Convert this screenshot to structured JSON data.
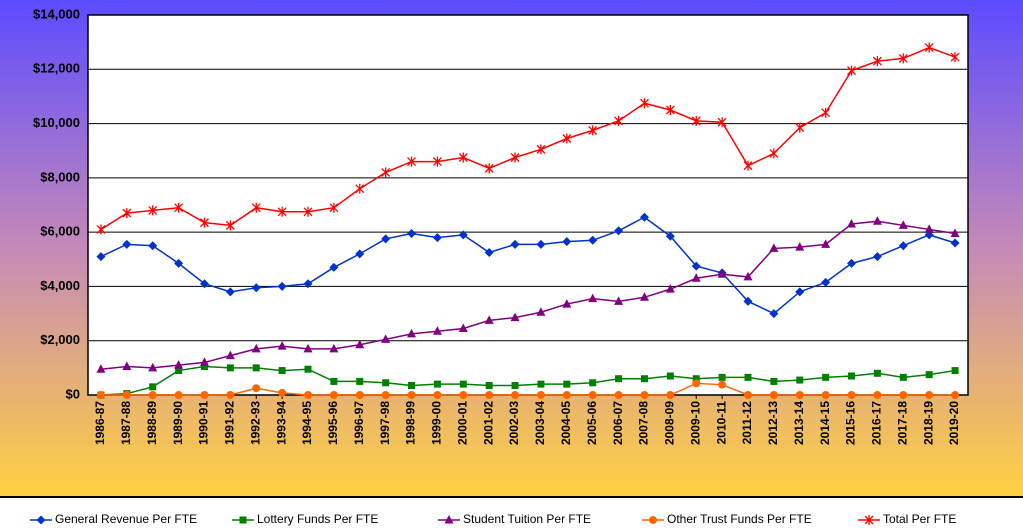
{
  "chart_data": {
    "type": "line",
    "categories": [
      "1986-87",
      "1987-88",
      "1988-89",
      "1989-90",
      "1990-91",
      "1991-92",
      "1992-93",
      "1993-94",
      "1994-95",
      "1995-96",
      "1996-97",
      "1997-98",
      "1998-99",
      "1999-00",
      "2000-01",
      "2001-02",
      "2002-03",
      "2003-04",
      "2004-05",
      "2005-06",
      "2006-07",
      "2007-08",
      "2008-09",
      "2009-10",
      "2010-11",
      "2011-12",
      "2012-13",
      "2013-14",
      "2014-15",
      "2015-16",
      "2016-17",
      "2017-18",
      "2018-19",
      "2019-20"
    ],
    "series": [
      {
        "name": "General Revenue Per FTE",
        "color": "#0033cc",
        "marker": "diamond",
        "values": [
          5100,
          5550,
          5500,
          4850,
          4100,
          3800,
          3950,
          4000,
          4100,
          4700,
          5200,
          5750,
          5950,
          5800,
          5900,
          5250,
          5550,
          5550,
          5650,
          5700,
          6050,
          6550,
          5850,
          4750,
          4500,
          3450,
          3000,
          3800,
          4150,
          4850,
          5100,
          5500,
          5900,
          5600
        ]
      },
      {
        "name": "Lottery Funds Per FTE",
        "color": "#008000",
        "marker": "square",
        "values": [
          0,
          50,
          300,
          900,
          1050,
          1000,
          1000,
          900,
          950,
          500,
          500,
          450,
          350,
          400,
          400,
          350,
          350,
          400,
          400,
          450,
          600,
          600,
          700,
          600,
          650,
          650,
          500,
          550,
          650,
          700,
          800,
          650,
          750,
          900
        ]
      },
      {
        "name": "Student Tuition Per FTE",
        "color": "#800080",
        "marker": "triangle",
        "values": [
          950,
          1050,
          1000,
          1100,
          1200,
          1450,
          1700,
          1800,
          1700,
          1700,
          1850,
          2050,
          2250,
          2350,
          2450,
          2750,
          2850,
          3050,
          3350,
          3550,
          3450,
          3600,
          3900,
          4300,
          4450,
          4350,
          5400,
          5450,
          5550,
          6300,
          6400,
          6250,
          6100,
          5950
        ]
      },
      {
        "name": "Other Trust Funds Per FTE",
        "color": "#ff6600",
        "marker": "circle",
        "values": [
          0,
          0,
          0,
          0,
          0,
          0,
          250,
          80,
          0,
          0,
          0,
          0,
          0,
          0,
          0,
          0,
          0,
          0,
          0,
          0,
          0,
          0,
          0,
          430,
          380,
          0,
          0,
          0,
          0,
          0,
          0,
          0,
          0,
          0
        ]
      },
      {
        "name": "Total Per FTE",
        "color": "#ff0000",
        "marker": "star",
        "values": [
          6100,
          6700,
          6800,
          6900,
          6350,
          6250,
          6900,
          6750,
          6750,
          6900,
          7600,
          8200,
          8600,
          8600,
          8750,
          8350,
          8750,
          9050,
          9450,
          9750,
          10100,
          10750,
          10500,
          10100,
          10050,
          8450,
          8900,
          9850,
          10400,
          11950,
          12300,
          12400,
          12800,
          12450
        ]
      }
    ],
    "ylim": [
      0,
      14000
    ],
    "yticks": [
      {
        "value": 0,
        "label": "$0"
      },
      {
        "value": 2000,
        "label": "$2,000"
      },
      {
        "value": 4000,
        "label": "$4,000"
      },
      {
        "value": 6000,
        "label": "$6,000"
      },
      {
        "value": 8000,
        "label": "$8,000"
      },
      {
        "value": 10000,
        "label": "$10,000"
      },
      {
        "value": 12000,
        "label": "$12,000"
      },
      {
        "value": 14000,
        "label": "$14,000"
      }
    ],
    "grid": true,
    "legend": "bottom"
  }
}
